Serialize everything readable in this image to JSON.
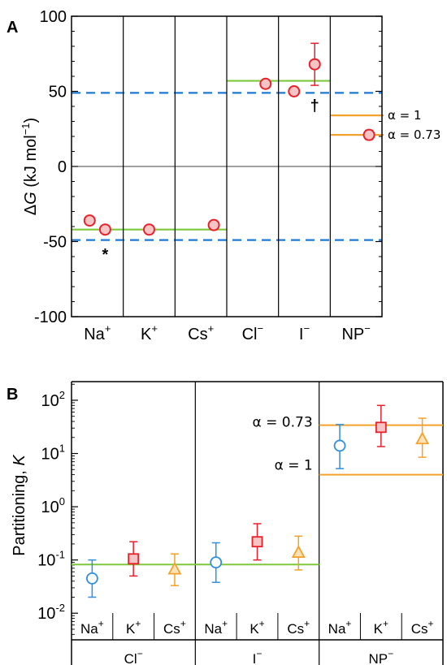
{
  "chart_data": [
    {
      "panel": "A",
      "type": "scatter",
      "ylabel": "ΔG (kJ mol⁻¹)",
      "ylabel_parts": [
        "Δ",
        "G",
        " (kJ mol",
        "−1",
        ")"
      ],
      "ylim": [
        -100,
        100
      ],
      "yticks": [
        "100",
        "50",
        "0",
        "-50",
        "-100"
      ],
      "ytick_values": [
        100,
        50,
        0,
        -50,
        -100
      ],
      "categories": [
        "Na⁺",
        "K⁺",
        "Cs⁺",
        "Cl⁻",
        "I⁻",
        "NP⁻"
      ],
      "category_parts": [
        [
          "Na",
          "+"
        ],
        [
          "K",
          "+"
        ],
        [
          "Cs",
          "+"
        ],
        [
          "Cl",
          "−"
        ],
        [
          "I",
          "−"
        ],
        [
          "NP",
          "−"
        ]
      ],
      "points": [
        {
          "cat": 0,
          "offset": -0.3,
          "y": -36,
          "err": 2
        },
        {
          "cat": 0,
          "offset": 0.3,
          "y": -42,
          "err": 2
        },
        {
          "cat": 1,
          "offset": 0,
          "y": -42,
          "err": 2
        },
        {
          "cat": 2,
          "offset": 0.5,
          "y": -39,
          "err": 2
        },
        {
          "cat": 3,
          "offset": 0.5,
          "y": 55,
          "err": 2
        },
        {
          "cat": 4,
          "offset": -0.4,
          "y": 50,
          "err": 2
        },
        {
          "cat": 4,
          "offset": 0.4,
          "y": 68,
          "err": 14
        },
        {
          "cat": 5,
          "offset": 0.5,
          "y": 21,
          "err": 3
        }
      ],
      "ref_lines_dashed": [
        49,
        -49
      ],
      "green_lines": [
        {
          "from": 0,
          "to": 3,
          "y": -42
        },
        {
          "from": 3,
          "to": 5,
          "y": 57
        }
      ],
      "orange_lines": [
        {
          "label": "α = 1",
          "y": 34
        },
        {
          "label": "α = 0.73",
          "y": 21
        }
      ],
      "markers": [
        {
          "text": "*",
          "cat": 0,
          "offset": 0.3,
          "y": -59
        },
        {
          "text": "†",
          "cat": 4,
          "offset": 0.4,
          "y": 40
        }
      ],
      "colors": {
        "points": "#e8202a",
        "point_fill": "#f6c4c4",
        "dashed": "#1f78d1",
        "green": "#7ec83c",
        "orange": "#f2a22c"
      }
    },
    {
      "panel": "B",
      "type": "scatter",
      "ylabel": "Partitioning, K",
      "ylabel_parts": [
        "Partitioning, ",
        "K"
      ],
      "yscale": "log",
      "ylim_log10": [
        -2.5,
        2.35
      ],
      "yticks": [
        {
          "base": "10",
          "exp": "2",
          "v": 2
        },
        {
          "base": "10",
          "exp": "1",
          "v": 1
        },
        {
          "base": "10",
          "exp": "0",
          "v": 0
        },
        {
          "base": "10",
          "exp": "-1",
          "v": -1
        },
        {
          "base": "10",
          "exp": "-2",
          "v": -2
        }
      ],
      "groups": [
        "Cl⁻",
        "I⁻",
        "NP⁻"
      ],
      "group_parts": [
        [
          "Cl",
          "−"
        ],
        [
          "I",
          "−"
        ],
        [
          "NP",
          "−"
        ]
      ],
      "sub_categories": [
        "Na⁺",
        "K⁺",
        "Cs⁺"
      ],
      "sub_parts": [
        [
          "Na",
          "+"
        ],
        [
          "K",
          "+"
        ],
        [
          "Cs",
          "+"
        ]
      ],
      "series": [
        {
          "name": "Na⁺",
          "shape": "circle",
          "color": "#2f8fe0",
          "values": [
            0.045,
            0.09,
            14
          ],
          "lo": [
            0.02,
            0.038,
            5.2
          ],
          "hi": [
            0.1,
            0.21,
            35
          ]
        },
        {
          "name": "K⁺",
          "shape": "square",
          "color": "#e8202a",
          "values": [
            0.105,
            0.22,
            31
          ],
          "lo": [
            0.05,
            0.1,
            13.5
          ],
          "hi": [
            0.22,
            0.48,
            80
          ]
        },
        {
          "name": "Cs⁺",
          "shape": "triangle",
          "color": "#f2a22c",
          "values": [
            0.068,
            0.14,
            19
          ],
          "lo": [
            0.033,
            0.065,
            8.5
          ],
          "hi": [
            0.13,
            0.28,
            46
          ]
        }
      ],
      "green_line": {
        "from_group": 0,
        "to_group": 2,
        "y": 0.082
      },
      "orange_lines": [
        {
          "label": "α = 0.73",
          "y": 34
        },
        {
          "label": "α = 1",
          "y": 4
        }
      ],
      "colors": {
        "green": "#7ec83c",
        "orange": "#f2a22c"
      }
    }
  ]
}
